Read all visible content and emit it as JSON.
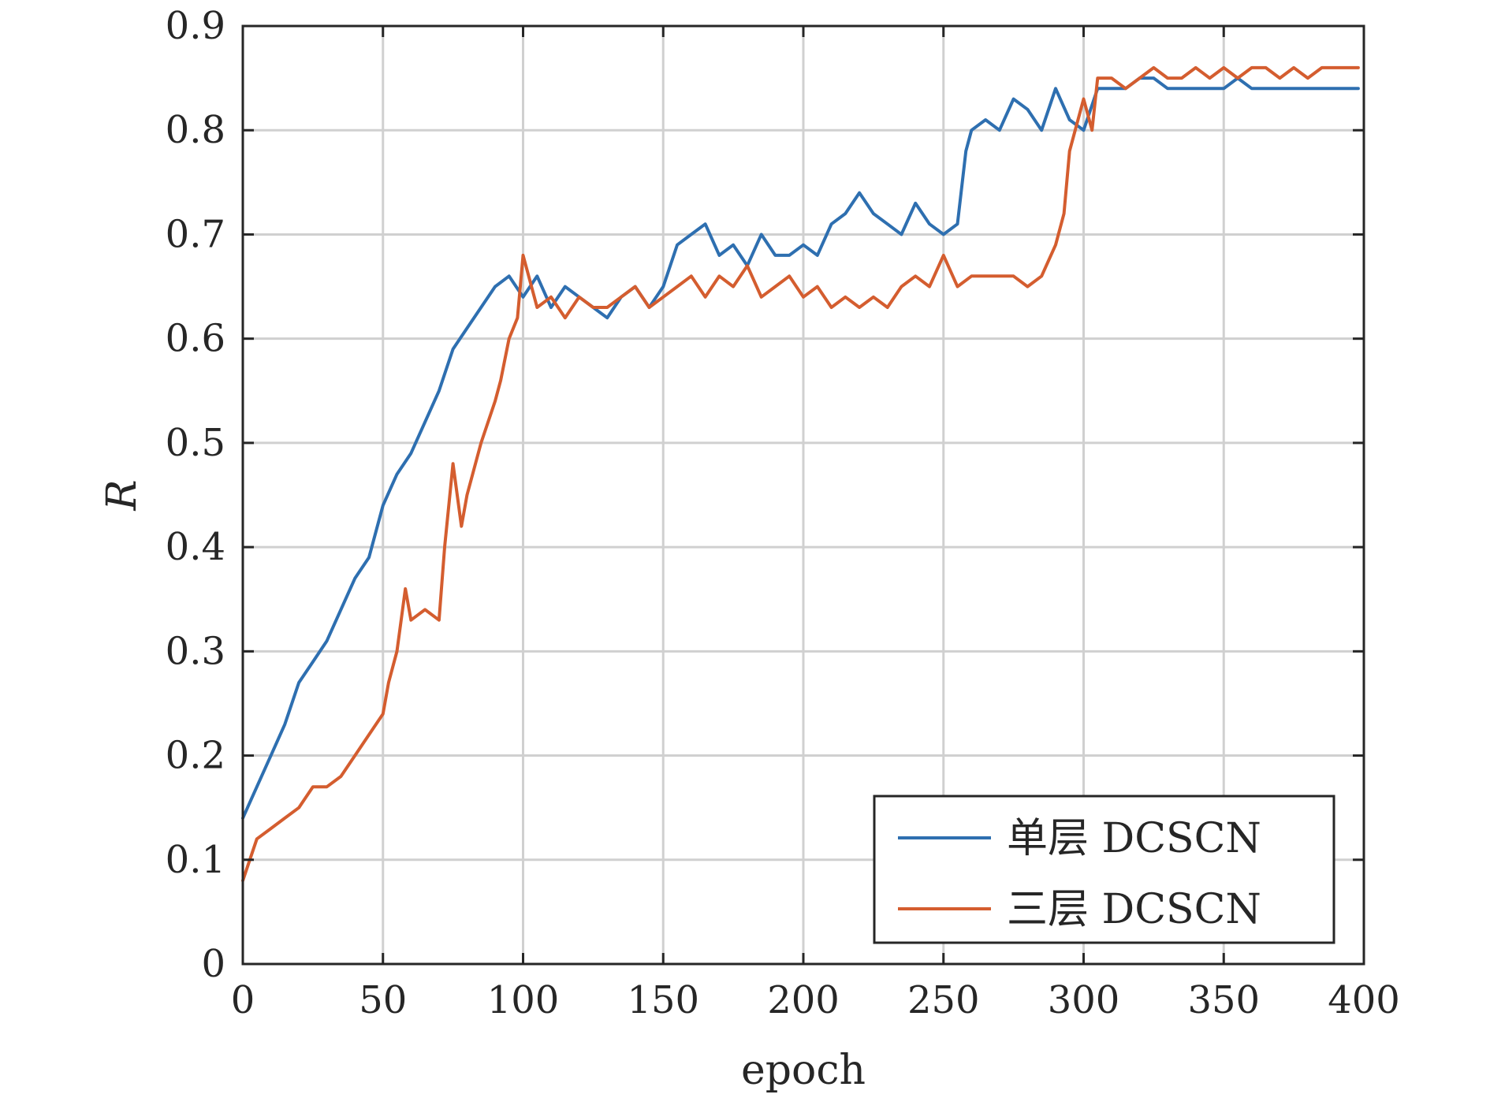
{
  "chart_data": {
    "type": "line",
    "xlabel": "epoch",
    "ylabel": "R",
    "xlim": [
      0,
      400
    ],
    "ylim": [
      0,
      0.9
    ],
    "xticks": [
      0,
      50,
      100,
      150,
      200,
      250,
      300,
      350,
      400
    ],
    "yticks": [
      0,
      0.1,
      0.2,
      0.3,
      0.4,
      0.5,
      0.6,
      0.7,
      0.8,
      0.9
    ],
    "xtick_labels": [
      "0",
      "50",
      "100",
      "150",
      "200",
      "250",
      "300",
      "350",
      "400"
    ],
    "ytick_labels": [
      "0",
      "0.1",
      "0.2",
      "0.3",
      "0.4",
      "0.5",
      "0.6",
      "0.7",
      "0.8",
      "0.9"
    ],
    "grid": true,
    "legend_position": "bottom-right",
    "series": [
      {
        "name": "单层 DCSCN",
        "color": "#2e6fb0",
        "x": [
          0,
          5,
          10,
          15,
          20,
          25,
          30,
          35,
          40,
          45,
          50,
          55,
          60,
          65,
          70,
          75,
          80,
          85,
          90,
          95,
          100,
          105,
          110,
          115,
          120,
          125,
          130,
          135,
          140,
          145,
          150,
          155,
          160,
          165,
          170,
          175,
          180,
          185,
          190,
          195,
          200,
          205,
          210,
          215,
          220,
          225,
          230,
          235,
          240,
          245,
          250,
          255,
          258,
          260,
          265,
          270,
          275,
          280,
          285,
          290,
          295,
          300,
          305,
          310,
          315,
          320,
          325,
          330,
          335,
          340,
          345,
          350,
          355,
          360,
          365,
          370,
          375,
          380,
          385,
          390,
          395,
          398
        ],
        "y": [
          0.14,
          0.17,
          0.2,
          0.23,
          0.27,
          0.29,
          0.31,
          0.34,
          0.37,
          0.39,
          0.44,
          0.47,
          0.49,
          0.52,
          0.55,
          0.59,
          0.61,
          0.63,
          0.65,
          0.66,
          0.64,
          0.66,
          0.63,
          0.65,
          0.64,
          0.63,
          0.62,
          0.64,
          0.65,
          0.63,
          0.65,
          0.69,
          0.7,
          0.71,
          0.68,
          0.69,
          0.67,
          0.7,
          0.68,
          0.68,
          0.69,
          0.68,
          0.71,
          0.72,
          0.74,
          0.72,
          0.71,
          0.7,
          0.73,
          0.71,
          0.7,
          0.71,
          0.78,
          0.8,
          0.81,
          0.8,
          0.83,
          0.82,
          0.8,
          0.84,
          0.81,
          0.8,
          0.84,
          0.84,
          0.84,
          0.85,
          0.85,
          0.84,
          0.84,
          0.84,
          0.84,
          0.84,
          0.85,
          0.84,
          0.84,
          0.84,
          0.84,
          0.84,
          0.84,
          0.84,
          0.84,
          0.84
        ]
      },
      {
        "name": "三层 DCSCN",
        "color": "#d45d2f",
        "x": [
          0,
          5,
          10,
          15,
          20,
          25,
          30,
          35,
          40,
          45,
          50,
          52,
          55,
          58,
          60,
          65,
          70,
          72,
          75,
          78,
          80,
          85,
          90,
          92,
          95,
          98,
          100,
          105,
          110,
          115,
          120,
          125,
          130,
          135,
          140,
          145,
          150,
          155,
          160,
          165,
          170,
          175,
          180,
          185,
          190,
          195,
          200,
          205,
          210,
          215,
          220,
          225,
          230,
          235,
          240,
          245,
          250,
          255,
          260,
          265,
          270,
          275,
          280,
          285,
          290,
          293,
          295,
          300,
          303,
          305,
          310,
          315,
          320,
          325,
          330,
          335,
          340,
          345,
          350,
          355,
          360,
          365,
          370,
          375,
          380,
          385,
          390,
          395,
          398
        ],
        "y": [
          0.08,
          0.12,
          0.13,
          0.14,
          0.15,
          0.17,
          0.17,
          0.18,
          0.2,
          0.22,
          0.24,
          0.27,
          0.3,
          0.36,
          0.33,
          0.34,
          0.33,
          0.4,
          0.48,
          0.42,
          0.45,
          0.5,
          0.54,
          0.56,
          0.6,
          0.62,
          0.68,
          0.63,
          0.64,
          0.62,
          0.64,
          0.63,
          0.63,
          0.64,
          0.65,
          0.63,
          0.64,
          0.65,
          0.66,
          0.64,
          0.66,
          0.65,
          0.67,
          0.64,
          0.65,
          0.66,
          0.64,
          0.65,
          0.63,
          0.64,
          0.63,
          0.64,
          0.63,
          0.65,
          0.66,
          0.65,
          0.68,
          0.65,
          0.66,
          0.66,
          0.66,
          0.66,
          0.65,
          0.66,
          0.69,
          0.72,
          0.78,
          0.83,
          0.8,
          0.85,
          0.85,
          0.84,
          0.85,
          0.86,
          0.85,
          0.85,
          0.86,
          0.85,
          0.86,
          0.85,
          0.86,
          0.86,
          0.85,
          0.86,
          0.85,
          0.86,
          0.86,
          0.86,
          0.86
        ]
      }
    ]
  }
}
